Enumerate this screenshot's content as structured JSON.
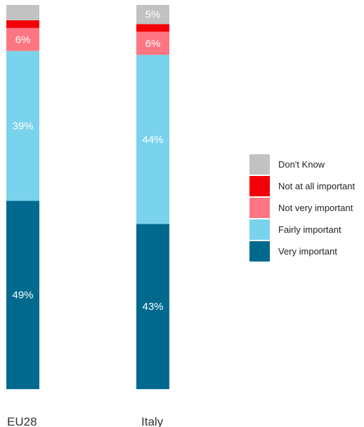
{
  "chart_data": {
    "type": "bar",
    "stacked": true,
    "orientation": "vertical",
    "categories": [
      "EU28",
      "Italy"
    ],
    "ylim": [
      0,
      100
    ],
    "grid": false,
    "legend_position": "right",
    "series": [
      {
        "name": "Very important",
        "color": "#006a8e",
        "values": [
          49,
          43
        ],
        "labels": [
          "49%",
          "43%"
        ]
      },
      {
        "name": "Fairly important",
        "color": "#7ad3ec",
        "values": [
          39,
          44
        ],
        "labels": [
          "39%",
          "44%"
        ]
      },
      {
        "name": "Not very important",
        "color": "#fe7682",
        "values": [
          6,
          6
        ],
        "labels": [
          "6%",
          "6%"
        ]
      },
      {
        "name": "Not at all important",
        "color": "#f30009",
        "values": [
          2,
          2
        ],
        "labels": [
          "",
          ""
        ]
      },
      {
        "name": "Don't Know",
        "color": "#c2c2c2",
        "values": [
          4,
          5
        ],
        "labels": [
          "",
          "5%"
        ]
      }
    ],
    "legend_order": [
      "Don't Know",
      "Not at all important",
      "Not very important",
      "Fairly important",
      "Very important"
    ]
  }
}
